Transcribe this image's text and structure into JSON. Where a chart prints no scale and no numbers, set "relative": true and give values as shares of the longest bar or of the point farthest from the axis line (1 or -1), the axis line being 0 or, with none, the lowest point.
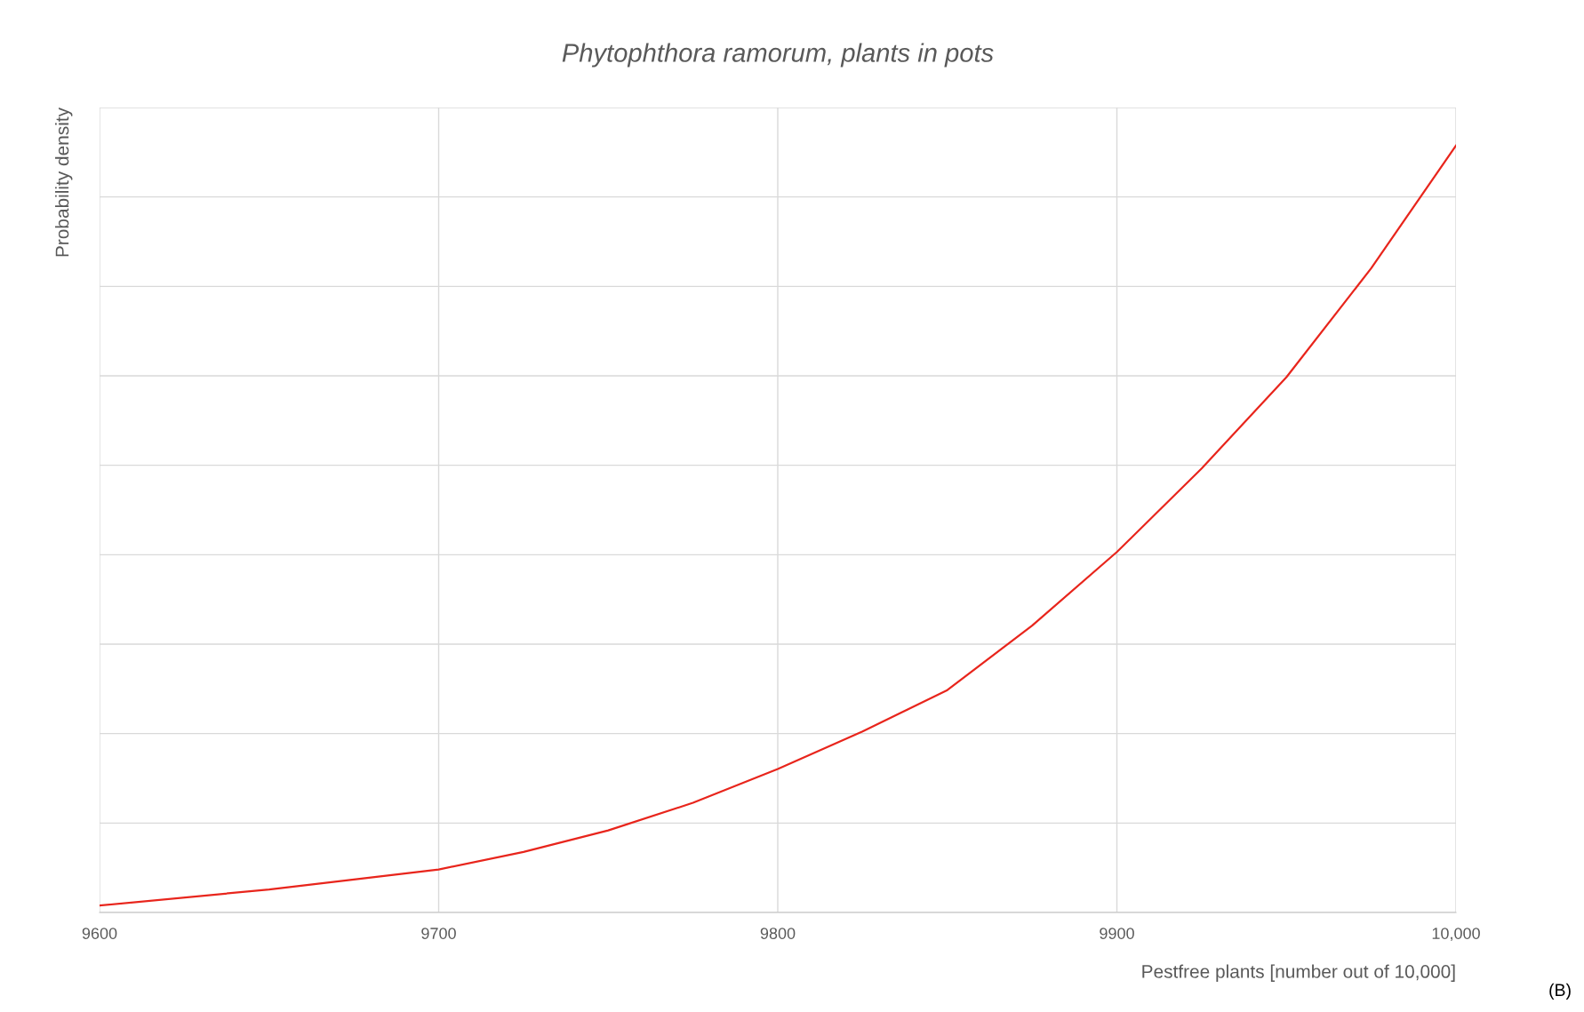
{
  "chart_data": {
    "type": "line",
    "title": "Phytophthora ramorum, plants in pots",
    "xlabel": "Pestfree plants [number out of 10,000]",
    "ylabel": "Probability density",
    "annotations": [
      "(B)"
    ],
    "relative": true,
    "xlim": [
      9600,
      10000
    ],
    "xticks": [
      9600,
      9700,
      9800,
      9900,
      {
        "value": 10000,
        "label": "10,000"
      }
    ],
    "grid": true,
    "tick_labels": "x",
    "series": [
      {
        "color": "#e8251c",
        "x": [
          9600,
          9650,
          9700,
          9725,
          9750,
          9775,
          9800,
          9825,
          9850,
          9875,
          9900,
          9925,
          9950,
          9975,
          10000
        ],
        "values": [
          0.009,
          0.03,
          0.056,
          0.079,
          0.107,
          0.143,
          0.187,
          0.236,
          0.29,
          0.374,
          0.47,
          0.579,
          0.698,
          0.84,
          1.0
        ]
      }
    ]
  }
}
